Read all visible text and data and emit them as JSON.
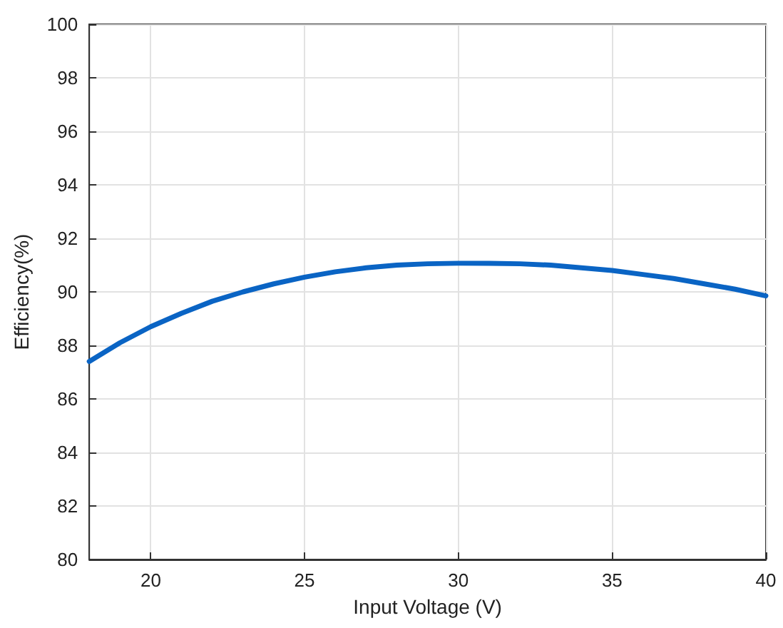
{
  "chart_data": {
    "type": "line",
    "xlabel": "Input Voltage (V)",
    "ylabel": "Efficiency(%)",
    "x": [
      18,
      19,
      20,
      21,
      22,
      23,
      24,
      25,
      26,
      27,
      28,
      29,
      30,
      31,
      32,
      33,
      34,
      35,
      36,
      37,
      38,
      39,
      40
    ],
    "series": [
      {
        "color": "#0a64c4",
        "values": [
          87.4,
          88.1,
          88.7,
          89.2,
          89.65,
          90.0,
          90.3,
          90.55,
          90.75,
          90.9,
          91.0,
          91.05,
          91.07,
          91.07,
          91.05,
          91.0,
          90.9,
          90.8,
          90.65,
          90.5,
          90.3,
          90.1,
          89.85
        ]
      }
    ],
    "xlim": [
      18,
      40
    ],
    "xticks": [
      20,
      25,
      30,
      35,
      40
    ],
    "ylim": [
      80,
      100
    ],
    "yticks": [
      80,
      82,
      84,
      86,
      88,
      90,
      92,
      94,
      96,
      98,
      100
    ],
    "grid": true,
    "marker": "none",
    "line_style": "solid"
  }
}
